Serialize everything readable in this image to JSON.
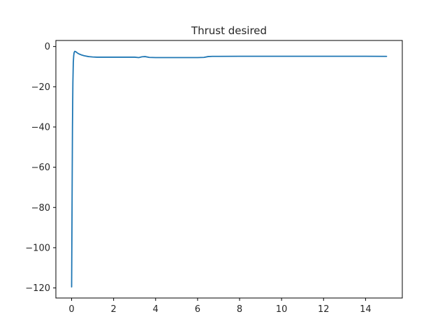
{
  "chart_data": {
    "type": "line",
    "title": "Thrust desired",
    "xlabel": "",
    "ylabel": "",
    "xlim": [
      -0.75,
      15.75
    ],
    "ylim": [
      -125.0,
      3.0
    ],
    "xticks": [
      0,
      2,
      4,
      6,
      8,
      10,
      12,
      14
    ],
    "yticks": [
      0,
      -20,
      -40,
      -60,
      -80,
      -100,
      -120
    ],
    "xtick_labels": [
      "0",
      "2",
      "4",
      "6",
      "8",
      "10",
      "12",
      "14"
    ],
    "ytick_labels": [
      "0",
      "−20",
      "−40",
      "−60",
      "−80",
      "−100",
      "−120"
    ],
    "grid": false,
    "legend": false,
    "colors": {
      "line": "#1f77b4",
      "axes": "#000000",
      "text": "#262626"
    },
    "series": [
      {
        "x": [
          0.0,
          0.02,
          0.04,
          0.06,
          0.08,
          0.1,
          0.12,
          0.15,
          0.2,
          0.25,
          0.3,
          0.4,
          0.5,
          0.6,
          0.8,
          1.0,
          1.2,
          1.5,
          2.0,
          2.5,
          3.0,
          3.2,
          3.35,
          3.5,
          3.7,
          4.0,
          5.0,
          6.0,
          6.3,
          6.5,
          6.7,
          7.0,
          8.0,
          9.0,
          10.0,
          11.0,
          12.0,
          13.0,
          14.0,
          15.0
        ],
        "values": [
          -119.5,
          -80.0,
          -40.0,
          -18.0,
          -8.0,
          -4.5,
          -3.0,
          -2.4,
          -2.6,
          -3.0,
          -3.4,
          -3.9,
          -4.3,
          -4.6,
          -5.0,
          -5.2,
          -5.3,
          -5.3,
          -5.3,
          -5.3,
          -5.3,
          -5.5,
          -5.1,
          -5.0,
          -5.4,
          -5.5,
          -5.5,
          -5.5,
          -5.4,
          -5.0,
          -4.9,
          -4.9,
          -4.85,
          -4.85,
          -4.85,
          -4.85,
          -4.85,
          -4.85,
          -4.85,
          -4.9
        ]
      }
    ]
  }
}
